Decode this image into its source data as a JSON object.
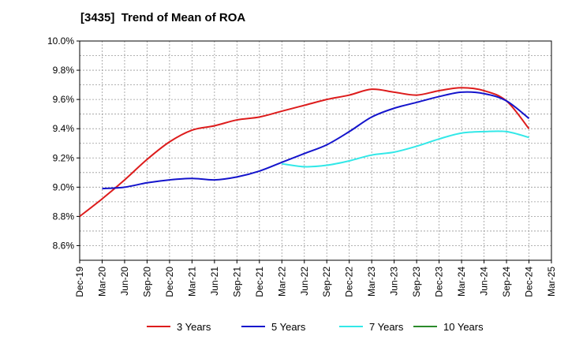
{
  "chart_data": {
    "type": "line",
    "title": "[3435]  Trend of Mean of ROA",
    "xlabel": "",
    "ylabel": "",
    "x": [
      "Dec-19",
      "Mar-20",
      "Jun-20",
      "Sep-20",
      "Dec-20",
      "Mar-21",
      "Jun-21",
      "Sep-21",
      "Dec-21",
      "Mar-22",
      "Jun-22",
      "Sep-22",
      "Dec-22",
      "Mar-23",
      "Jun-23",
      "Sep-23",
      "Dec-23",
      "Mar-24",
      "Jun-24",
      "Sep-24",
      "Dec-24",
      "Mar-25"
    ],
    "ylim": [
      8.5,
      10.0
    ],
    "yticks": [
      8.6,
      8.8,
      9.0,
      9.2,
      9.4,
      9.6,
      9.8,
      10.0
    ],
    "ytick_labels": [
      "8.6%",
      "8.8%",
      "9.0%",
      "9.2%",
      "9.4%",
      "9.6%",
      "9.8%",
      "10.0%"
    ],
    "grid": true,
    "legend_position": "bottom",
    "series": [
      {
        "name": "3 Years",
        "color": "#dd1c1c",
        "values": [
          8.8,
          8.92,
          9.05,
          9.19,
          9.31,
          9.39,
          9.42,
          9.46,
          9.48,
          9.52,
          9.56,
          9.6,
          9.63,
          9.67,
          9.65,
          9.63,
          9.66,
          9.68,
          9.66,
          9.59,
          9.4,
          null
        ]
      },
      {
        "name": "5 Years",
        "color": "#1414cc",
        "values": [
          null,
          8.99,
          9.0,
          9.03,
          9.05,
          9.06,
          9.05,
          9.07,
          9.11,
          9.17,
          9.23,
          9.29,
          9.38,
          9.48,
          9.54,
          9.58,
          9.62,
          9.65,
          9.64,
          9.59,
          9.47,
          null
        ]
      },
      {
        "name": "7 Years",
        "color": "#33e8e8",
        "values": [
          null,
          null,
          null,
          null,
          null,
          null,
          null,
          null,
          null,
          9.16,
          9.14,
          9.15,
          9.18,
          9.22,
          9.24,
          9.28,
          9.33,
          9.37,
          9.38,
          9.38,
          9.34,
          null
        ]
      },
      {
        "name": "10 Years",
        "color": "#2a8a2a",
        "values": [
          null,
          null,
          null,
          null,
          null,
          null,
          null,
          null,
          null,
          null,
          null,
          null,
          null,
          null,
          null,
          null,
          null,
          null,
          null,
          null,
          null,
          null
        ]
      }
    ]
  }
}
